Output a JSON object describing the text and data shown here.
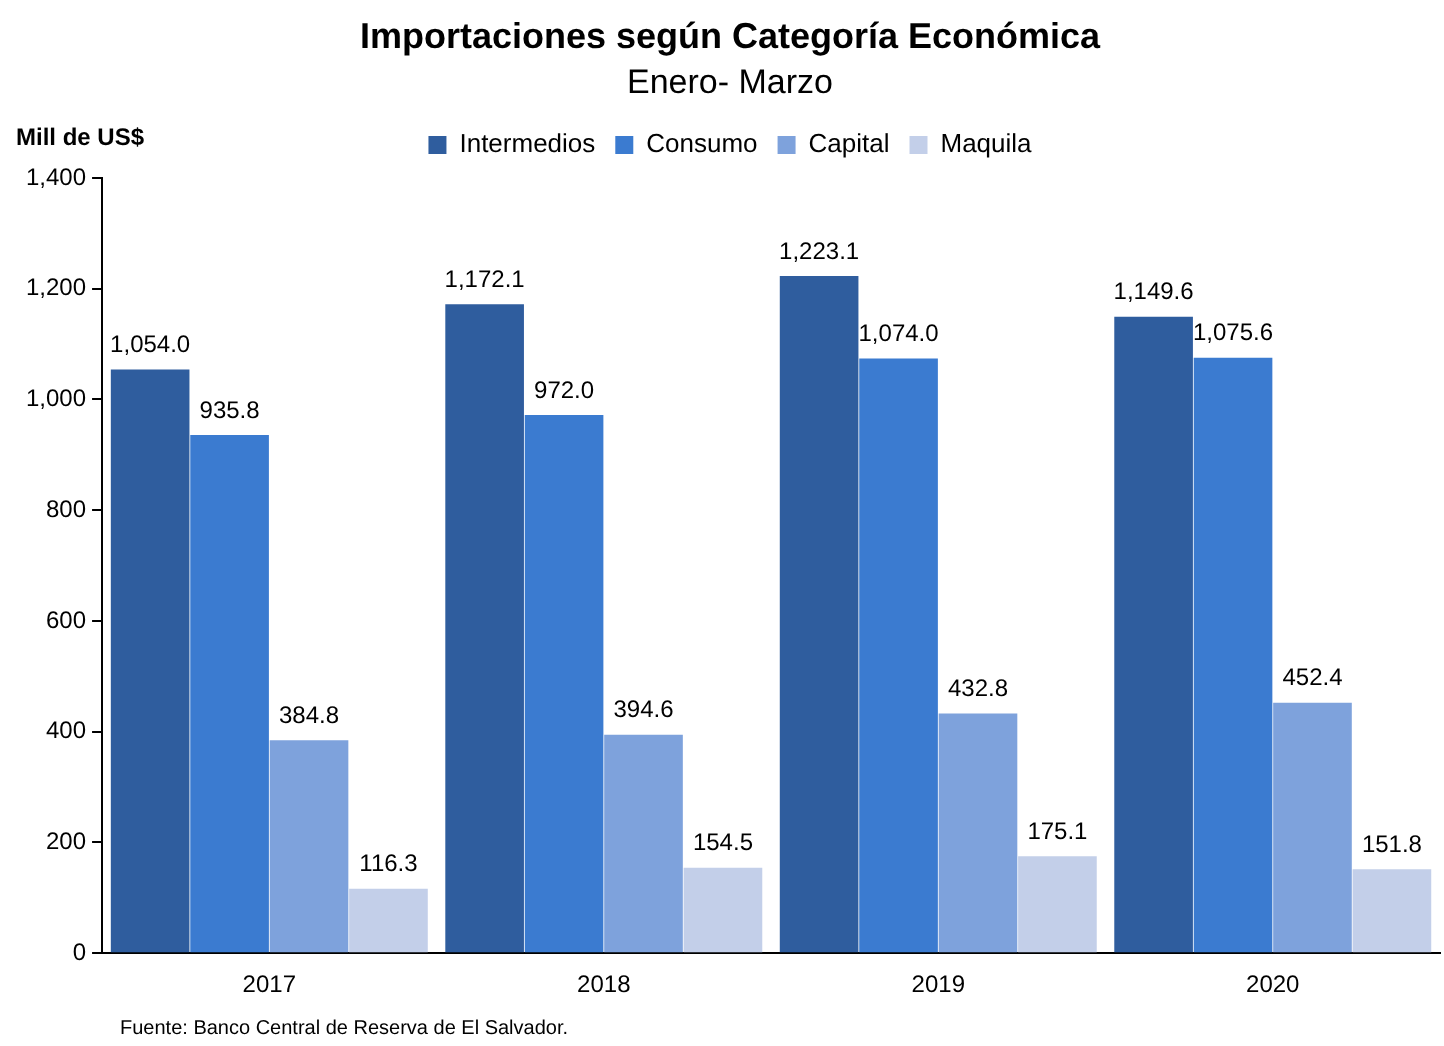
{
  "chart_data": {
    "type": "bar",
    "title": "Importaciones según Categoría Económica",
    "subtitle": "Enero- Marzo",
    "ylabel": "Mill de US$",
    "categories": [
      "2017",
      "2018",
      "2019",
      "2020"
    ],
    "series": [
      {
        "name": "Intermedios",
        "color": "#2f5d9e",
        "values": [
          1054.0,
          1172.1,
          1223.1,
          1149.6
        ],
        "value_labels": [
          "1,054.0",
          "1,172.1",
          "1,223.1",
          "1,149.6"
        ]
      },
      {
        "name": "Consumo",
        "color": "#3b7bd0",
        "values": [
          935.8,
          972.0,
          1074.0,
          1075.6
        ],
        "value_labels": [
          "935.8",
          "972.0",
          "1,074.0",
          "1,075.6"
        ]
      },
      {
        "name": "Capital",
        "color": "#7ea2dc",
        "values": [
          384.8,
          394.6,
          432.8,
          452.4
        ],
        "value_labels": [
          "384.8",
          "394.6",
          "432.8",
          "452.4"
        ]
      },
      {
        "name": "Maquila",
        "color": "#c3cfe9",
        "values": [
          116.3,
          154.5,
          175.1,
          151.8
        ],
        "value_labels": [
          "116.3",
          "154.5",
          "175.1",
          "151.8"
        ]
      }
    ],
    "ylim": [
      0,
      1400
    ],
    "yticks": [
      {
        "value": 0,
        "label": "0"
      },
      {
        "value": 200,
        "label": "200"
      },
      {
        "value": 400,
        "label": "400"
      },
      {
        "value": 600,
        "label": "600"
      },
      {
        "value": 800,
        "label": "800"
      },
      {
        "value": 1000,
        "label": "1,000"
      },
      {
        "value": 1200,
        "label": "1,200"
      },
      {
        "value": 1400,
        "label": "1,400"
      }
    ],
    "grid": false,
    "legend": "top",
    "annotations": [
      "Fuente: Banco Central de Reserva de El Salvador."
    ]
  }
}
